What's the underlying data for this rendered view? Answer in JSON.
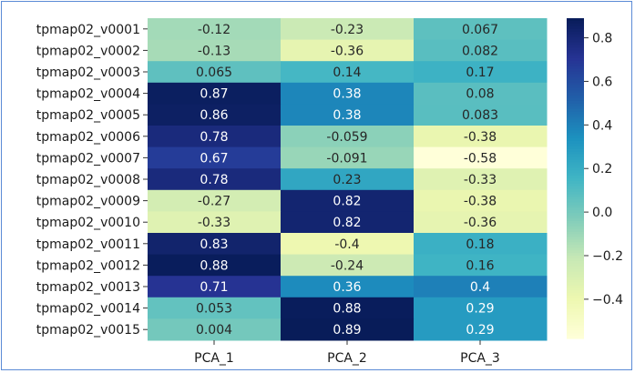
{
  "chart_data": {
    "type": "heatmap",
    "title": "",
    "xlabel": "",
    "ylabel": "",
    "colormap": "YlGnBu",
    "annotated": true,
    "rows": [
      "tpmap02_v0001",
      "tpmap02_v0002",
      "tpmap02_v0003",
      "tpmap02_v0004",
      "tpmap02_v0005",
      "tpmap02_v0006",
      "tpmap02_v0007",
      "tpmap02_v0008",
      "tpmap02_v0009",
      "tpmap02_v0010",
      "tpmap02_v0011",
      "tpmap02_v0012",
      "tpmap02_v0013",
      "tpmap02_v0014",
      "tpmap02_v0015"
    ],
    "columns": [
      "PCA_1",
      "PCA_2",
      "PCA_3"
    ],
    "values": [
      [
        -0.12,
        -0.23,
        0.067
      ],
      [
        -0.13,
        -0.36,
        0.082
      ],
      [
        0.065,
        0.14,
        0.17
      ],
      [
        0.87,
        0.38,
        0.08
      ],
      [
        0.86,
        0.38,
        0.083
      ],
      [
        0.78,
        -0.059,
        -0.38
      ],
      [
        0.67,
        -0.091,
        -0.58
      ],
      [
        0.78,
        0.23,
        -0.33
      ],
      [
        -0.27,
        0.82,
        -0.38
      ],
      [
        -0.33,
        0.82,
        -0.36
      ],
      [
        0.83,
        -0.4,
        0.18
      ],
      [
        0.88,
        -0.24,
        0.16
      ],
      [
        0.71,
        0.36,
        0.4
      ],
      [
        0.053,
        0.88,
        0.29
      ],
      [
        0.004,
        0.89,
        0.29
      ]
    ],
    "labels": [
      [
        "-0.12",
        "-0.23",
        "0.067"
      ],
      [
        "-0.13",
        "-0.36",
        "0.082"
      ],
      [
        "0.065",
        "0.14",
        "0.17"
      ],
      [
        "0.87",
        "0.38",
        "0.08"
      ],
      [
        "0.86",
        "0.38",
        "0.083"
      ],
      [
        "0.78",
        "-0.059",
        "-0.38"
      ],
      [
        "0.67",
        "-0.091",
        "-0.58"
      ],
      [
        "0.78",
        "0.23",
        "-0.33"
      ],
      [
        "-0.27",
        "0.82",
        "-0.38"
      ],
      [
        "-0.33",
        "0.82",
        "-0.36"
      ],
      [
        "0.83",
        "-0.4",
        "0.18"
      ],
      [
        "0.88",
        "-0.24",
        "0.16"
      ],
      [
        "0.71",
        "0.36",
        "0.4"
      ],
      [
        "0.053",
        "0.88",
        "0.29"
      ],
      [
        "0.004",
        "0.89",
        "0.29"
      ]
    ],
    "colorbar": {
      "vmin": -0.58,
      "vmax": 0.89,
      "ticks": [
        0.8,
        0.6,
        0.4,
        0.2,
        0.0,
        -0.2,
        -0.4
      ],
      "tick_labels": [
        "0.8",
        "0.6",
        "0.4",
        "0.2",
        "0.0",
        "−0.2",
        "−0.4"
      ]
    },
    "grid": false,
    "colors": {
      "frame_border": "#5b8bd6"
    }
  }
}
